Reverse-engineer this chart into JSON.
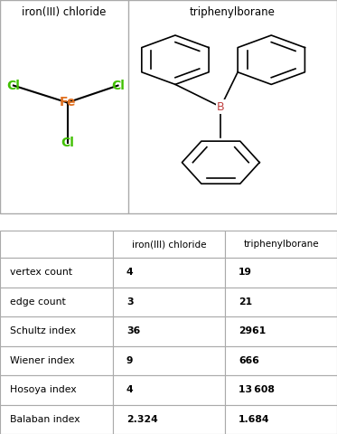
{
  "col1_header": "iron(III) chloride",
  "col2_header": "triphenylborane",
  "rows": [
    {
      "label": "vertex count",
      "val1": "4",
      "val2": "19"
    },
    {
      "label": "edge count",
      "val1": "3",
      "val2": "21"
    },
    {
      "label": "Schultz index",
      "val1": "36",
      "val2": "2961"
    },
    {
      "label": "Wiener index",
      "val1": "9",
      "val2": "666"
    },
    {
      "label": "Hosoya index",
      "val1": "4",
      "val2": "13 608"
    },
    {
      "label": "Balaban index",
      "val1": "2.324",
      "val2": "1.684"
    }
  ],
  "border_color": "#aaaaaa",
  "fe_color": "#e07020",
  "cl_color": "#40c000",
  "b_color": "#c04040"
}
